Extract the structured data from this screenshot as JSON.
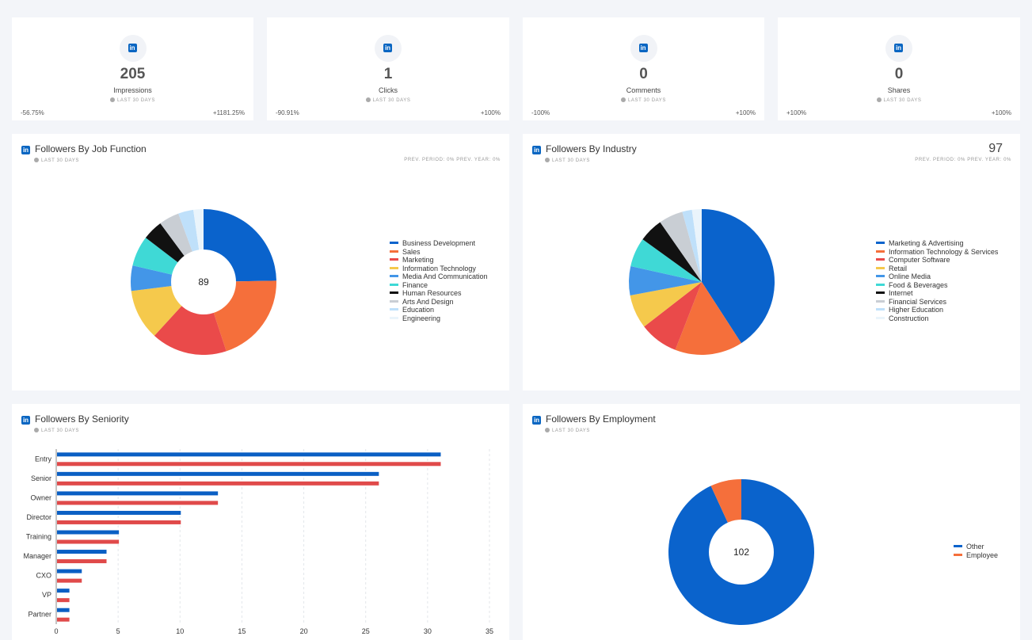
{
  "kpis": [
    {
      "value": "205",
      "label": "Impressions",
      "period": "LAST 30 DAYS",
      "left": "-56.75%",
      "right": "+1181.25%"
    },
    {
      "value": "1",
      "label": "Clicks",
      "period": "LAST 30 DAYS",
      "left": "-90.91%",
      "right": "+100%"
    },
    {
      "value": "0",
      "label": "Comments",
      "period": "LAST 30 DAYS",
      "left": "-100%",
      "right": "+100%"
    },
    {
      "value": "0",
      "label": "Shares",
      "period": "LAST 30 DAYS",
      "left": "+100%",
      "right": "+100%"
    }
  ],
  "icon_name": "linkedin-icon",
  "icon_glyph": "in",
  "job_function": {
    "title": "Followers By Job Function",
    "period": "LAST 30 DAYS",
    "prev": "PREV. PERIOD: 0%   PREV. YEAR: 0%",
    "chart_data": {
      "type": "pie",
      "donut": true,
      "center_label": "89",
      "categories": [
        "Business Development",
        "Sales",
        "Marketing",
        "Information Technology",
        "Media And Communication",
        "Finance",
        "Human Resources",
        "Arts And Design",
        "Education",
        "Engineering"
      ],
      "values": [
        22,
        18,
        15,
        10,
        5,
        6,
        4,
        4,
        3,
        2
      ],
      "colors": [
        "#0a63cc",
        "#f56f3b",
        "#ea4a4a",
        "#f5c94c",
        "#4396e8",
        "#3fd9d6",
        "#111111",
        "#c9ced4",
        "#bfe0fa",
        "#eaf4fb"
      ],
      "legend": "right"
    }
  },
  "industry": {
    "title": "Followers By Industry",
    "period": "LAST 30 DAYS",
    "prev": "PREV. PERIOD: 0%   PREV. YEAR: 0%",
    "total": "97",
    "chart_data": {
      "type": "pie",
      "donut": false,
      "categories": [
        "Marketing & Advertising",
        "Information Technology & Services",
        "Computer Software",
        "Retail",
        "Online Media",
        "Food & Beverages",
        "Internet",
        "Financial Services",
        "Higher Education",
        "Construction"
      ],
      "values": [
        38,
        14,
        8,
        7,
        6,
        6,
        5,
        5,
        2,
        2
      ],
      "colors": [
        "#0a63cc",
        "#f56f3b",
        "#ea4a4a",
        "#f5c94c",
        "#4396e8",
        "#3fd9d6",
        "#111111",
        "#c9ced4",
        "#bfe0fa",
        "#eaf4fb"
      ],
      "legend": "right"
    }
  },
  "seniority": {
    "title": "Followers By Seniority",
    "period": "LAST 30 DAYS",
    "chart_data": {
      "type": "bar",
      "orientation": "horizontal",
      "categories": [
        "Entry",
        "Senior",
        "Owner",
        "Director",
        "Training",
        "Manager",
        "CXO",
        "VP",
        "Partner"
      ],
      "series": [
        {
          "values": [
            31,
            26,
            13,
            10,
            5,
            4,
            2,
            1,
            1
          ],
          "color": "#0a5fc4"
        },
        {
          "values": [
            31,
            26,
            13,
            10,
            5,
            4,
            2,
            1,
            1
          ],
          "color": "#e04a4a"
        }
      ],
      "xlim": [
        0,
        35
      ],
      "xticks": [
        0,
        5,
        10,
        15,
        20,
        25,
        30,
        35
      ],
      "grid": true
    }
  },
  "employment": {
    "title": "Followers By Employment",
    "period": "LAST 30 DAYS",
    "chart_data": {
      "type": "pie",
      "donut": true,
      "center_label": "102",
      "categories": [
        "Other",
        "Employee"
      ],
      "values": [
        95,
        7
      ],
      "colors": [
        "#0a63cc",
        "#f56f3b"
      ],
      "legend": "right"
    }
  }
}
